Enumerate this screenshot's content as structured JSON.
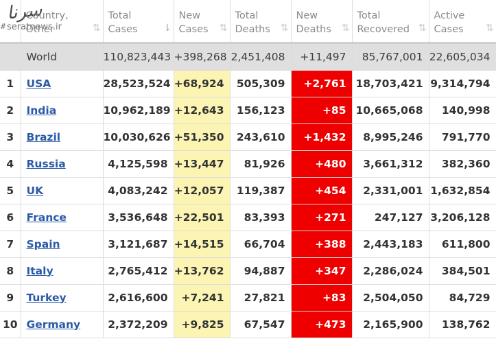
{
  "watermark": {
    "script_text": "سرنا",
    "site": "seratnews.ir"
  },
  "columns": [
    {
      "line1": "#",
      "line2": ""
    },
    {
      "line1": "Country,",
      "line2": "Other"
    },
    {
      "line1": "Total",
      "line2": "Cases"
    },
    {
      "line1": "New",
      "line2": "Cases"
    },
    {
      "line1": "Total",
      "line2": "Deaths"
    },
    {
      "line1": "New",
      "line2": "Deaths"
    },
    {
      "line1": "Total",
      "line2": "Recovered"
    },
    {
      "line1": "Active",
      "line2": "Cases"
    }
  ],
  "sort_icon": "⇅",
  "sort_icon_active": "⇂",
  "world": {
    "country": "World",
    "total_cases": "110,823,443",
    "new_cases": "+398,268",
    "total_deaths": "2,451,408",
    "new_deaths": "+11,497",
    "total_recovered": "85,767,001",
    "active_cases": "22,605,034"
  },
  "rows": [
    {
      "idx": "1",
      "country": "USA",
      "total_cases": "28,523,524",
      "new_cases": "+68,924",
      "total_deaths": "505,309",
      "new_deaths": "+2,761",
      "total_recovered": "18,703,421",
      "active_cases": "9,314,794"
    },
    {
      "idx": "2",
      "country": "India",
      "total_cases": "10,962,189",
      "new_cases": "+12,643",
      "total_deaths": "156,123",
      "new_deaths": "+85",
      "total_recovered": "10,665,068",
      "active_cases": "140,998"
    },
    {
      "idx": "3",
      "country": "Brazil",
      "total_cases": "10,030,626",
      "new_cases": "+51,350",
      "total_deaths": "243,610",
      "new_deaths": "+1,432",
      "total_recovered": "8,995,246",
      "active_cases": "791,770"
    },
    {
      "idx": "4",
      "country": "Russia",
      "total_cases": "4,125,598",
      "new_cases": "+13,447",
      "total_deaths": "81,926",
      "new_deaths": "+480",
      "total_recovered": "3,661,312",
      "active_cases": "382,360"
    },
    {
      "idx": "5",
      "country": "UK",
      "total_cases": "4,083,242",
      "new_cases": "+12,057",
      "total_deaths": "119,387",
      "new_deaths": "+454",
      "total_recovered": "2,331,001",
      "active_cases": "1,632,854"
    },
    {
      "idx": "6",
      "country": "France",
      "total_cases": "3,536,648",
      "new_cases": "+22,501",
      "total_deaths": "83,393",
      "new_deaths": "+271",
      "total_recovered": "247,127",
      "active_cases": "3,206,128"
    },
    {
      "idx": "7",
      "country": "Spain",
      "total_cases": "3,121,687",
      "new_cases": "+14,515",
      "total_deaths": "66,704",
      "new_deaths": "+388",
      "total_recovered": "2,443,183",
      "active_cases": "611,800"
    },
    {
      "idx": "8",
      "country": "Italy",
      "total_cases": "2,765,412",
      "new_cases": "+13,762",
      "total_deaths": "94,887",
      "new_deaths": "+347",
      "total_recovered": "2,286,024",
      "active_cases": "384,501"
    },
    {
      "idx": "9",
      "country": "Turkey",
      "total_cases": "2,616,600",
      "new_cases": "+7,241",
      "total_deaths": "27,821",
      "new_deaths": "+83",
      "total_recovered": "2,504,050",
      "active_cases": "84,729"
    },
    {
      "idx": "10",
      "country": "Germany",
      "total_cases": "2,372,209",
      "new_cases": "+9,825",
      "total_deaths": "67,547",
      "new_deaths": "+473",
      "total_recovered": "2,165,900",
      "active_cases": "138,762"
    }
  ],
  "colors": {
    "new_cases_bg": "#fbf4b3",
    "new_deaths_bg": "#ee0000",
    "link": "#2b5aa8",
    "world_bg": "#dfdfdf"
  }
}
